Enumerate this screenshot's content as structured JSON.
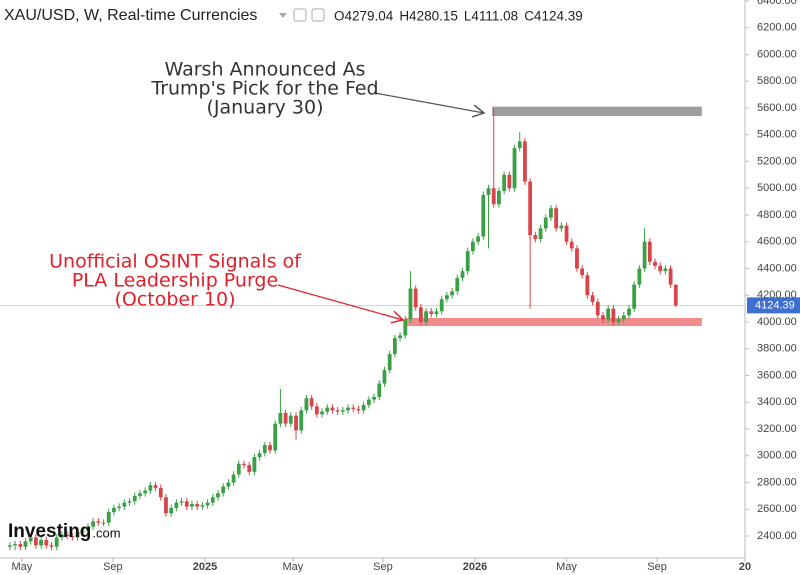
{
  "chart_data": {
    "type": "candlestick",
    "title": "XAU/USD, W, Real-time Currencies",
    "ohlc_labels": [
      "O4279.04",
      "H4280.15",
      "L4111.08",
      "C4124.39"
    ],
    "up_color": "#3a9f45",
    "down_color": "#d9434a",
    "xlim": [
      -1.9,
      141.3
    ],
    "xticks": [
      {
        "value": 2.3,
        "label": "May"
      },
      {
        "value": 19.8,
        "label": "Sep"
      },
      {
        "value": 37.5,
        "label": "2025"
      },
      {
        "value": 54.4,
        "label": "May"
      },
      {
        "value": 71.7,
        "label": "Sep"
      },
      {
        "value": 89.4,
        "label": "2026"
      },
      {
        "value": 107,
        "label": "May"
      },
      {
        "value": 124.4,
        "label": "Sep"
      },
      {
        "value": 141.3,
        "label": "20"
      }
    ],
    "ylim": [
      2221,
      6407
    ],
    "yticks": [
      {
        "value": 2400,
        "label": "2400.00"
      },
      {
        "value": 2600,
        "label": "2600.00"
      },
      {
        "value": 2800,
        "label": "2800.00"
      },
      {
        "value": 3000,
        "label": "3000.00"
      },
      {
        "value": 3200,
        "label": "3200.00"
      },
      {
        "value": 3400,
        "label": "3400.00"
      },
      {
        "value": 3600,
        "label": "3600.00"
      },
      {
        "value": 3800,
        "label": "3800.00"
      },
      {
        "value": 4000,
        "label": "4000.00"
      },
      {
        "value": 4200,
        "label": "4200.00"
      },
      {
        "value": 4400,
        "label": "4400.00"
      },
      {
        "value": 4600,
        "label": "4600.00"
      },
      {
        "value": 4800,
        "label": "4800.00"
      },
      {
        "value": 5000,
        "label": "5000.00"
      },
      {
        "value": 5200,
        "label": "5200.00"
      },
      {
        "value": 5400,
        "label": "5400.00"
      },
      {
        "value": 5600,
        "label": "5600.00"
      },
      {
        "value": 5800,
        "label": "5800.00"
      },
      {
        "value": 6000,
        "label": "6000.00"
      },
      {
        "value": 6200,
        "label": "6200.00"
      },
      {
        "value": 6400,
        "label": "6400.00"
      }
    ],
    "last_price": 4124.39,
    "last_price_color": "#3f6fd1",
    "open": [
      2320,
      2330,
      2340,
      2320,
      2360,
      2390,
      2330,
      2370,
      2330,
      2320,
      2390,
      2410,
      2400,
      2390,
      2430,
      2440,
      2470,
      2510,
      2500,
      2500,
      2580,
      2610,
      2620,
      2650,
      2660,
      2700,
      2720,
      2740,
      2780,
      2760,
      2690,
      2570,
      2610,
      2650,
      2660,
      2620,
      2640,
      2620,
      2630,
      2650,
      2690,
      2720,
      2770,
      2800,
      2860,
      2940,
      2930,
      2880,
      2990,
      3020,
      3080,
      3040,
      3240,
      3320,
      3240,
      3300,
      3190,
      3340,
      3430,
      3370,
      3310,
      3330,
      3360,
      3340,
      3330,
      3340,
      3360,
      3350,
      3340,
      3380,
      3420,
      3440,
      3540,
      3640,
      3760,
      3880,
      3900,
      4020,
      4250,
      4110,
      4000,
      4080,
      4060,
      4080,
      4170,
      4200,
      4230,
      4330,
      4380,
      4530,
      4600,
      4640,
      4950,
      5000,
      4880,
      4980,
      5100,
      5000,
      5300,
      5350,
      5050,
      4650,
      4620,
      4700,
      4780,
      4850,
      4700,
      4720,
      4600,
      4550,
      4400,
      4350,
      4200,
      4150,
      4050,
      4020,
      4100,
      4000,
      4020,
      4050,
      4100,
      4280,
      4400,
      4600,
      4450,
      4420,
      4380,
      4400,
      4279.04
    ],
    "high": [
      2355,
      2365,
      2365,
      2385,
      2415,
      2415,
      2395,
      2395,
      2355,
      2415,
      2435,
      2435,
      2425,
      2455,
      2465,
      2495,
      2535,
      2535,
      2525,
      2605,
      2635,
      2645,
      2675,
      2685,
      2725,
      2745,
      2765,
      2805,
      2805,
      2785,
      2715,
      2635,
      2675,
      2685,
      2685,
      2665,
      2665,
      2655,
      2675,
      2715,
      2745,
      2795,
      2825,
      2885,
      2965,
      2965,
      2955,
      3015,
      3045,
      3105,
      3105,
      3265,
      3500,
      3345,
      3325,
      3325,
      3365,
      3455,
      3455,
      3395,
      3355,
      3385,
      3385,
      3365,
      3365,
      3385,
      3385,
      3375,
      3405,
      3445,
      3465,
      3565,
      3665,
      3785,
      3905,
      3925,
      4045,
      4380,
      4275,
      4135,
      4105,
      4105,
      4105,
      4195,
      4225,
      4255,
      4355,
      4405,
      4555,
      4625,
      4665,
      4975,
      5025,
      5600,
      5005,
      5125,
      5125,
      5325,
      5420,
      5375,
      5075,
      4675,
      4725,
      4805,
      4875,
      4875,
      4745,
      4745,
      4625,
      4575,
      4425,
      4375,
      4225,
      4175,
      4075,
      4125,
      4125,
      4045,
      4075,
      4125,
      4305,
      4425,
      4700,
      4625,
      4475,
      4445,
      4425,
      4425,
      4280.15
    ],
    "low": [
      2295,
      2295,
      2295,
      2295,
      2335,
      2305,
      2305,
      2305,
      2295,
      2295,
      2365,
      2375,
      2365,
      2365,
      2405,
      2415,
      2445,
      2475,
      2475,
      2475,
      2555,
      2585,
      2595,
      2625,
      2635,
      2675,
      2695,
      2715,
      2735,
      2665,
      2545,
      2545,
      2585,
      2625,
      2595,
      2595,
      2595,
      2595,
      2605,
      2625,
      2665,
      2695,
      2745,
      2775,
      2835,
      2905,
      2855,
      2855,
      2965,
      2995,
      3015,
      3015,
      3215,
      3215,
      3215,
      3120,
      3165,
      3315,
      3345,
      3285,
      3285,
      3305,
      3315,
      3305,
      3305,
      3315,
      3325,
      3315,
      3315,
      3355,
      3395,
      3415,
      3515,
      3615,
      3735,
      3855,
      3875,
      3995,
      4085,
      3975,
      3975,
      4035,
      4035,
      4055,
      4145,
      4175,
      4205,
      4305,
      4355,
      4505,
      4575,
      4615,
      4550,
      4855,
      4855,
      4955,
      4975,
      4975,
      5275,
      5025,
      4100,
      4595,
      4595,
      4675,
      4755,
      4675,
      4675,
      4575,
      4525,
      4375,
      4325,
      4175,
      4125,
      4025,
      3995,
      3995,
      3975,
      3975,
      3995,
      4025,
      4075,
      4255,
      4375,
      4425,
      4395,
      4355,
      4355,
      4255,
      4111.08
    ],
    "close": [
      2330,
      2340,
      2320,
      2360,
      2390,
      2330,
      2370,
      2330,
      2320,
      2390,
      2410,
      2400,
      2390,
      2430,
      2440,
      2470,
      2510,
      2500,
      2500,
      2580,
      2610,
      2620,
      2650,
      2660,
      2700,
      2720,
      2740,
      2780,
      2760,
      2690,
      2570,
      2610,
      2650,
      2660,
      2620,
      2640,
      2620,
      2630,
      2650,
      2690,
      2720,
      2770,
      2800,
      2860,
      2940,
      2930,
      2880,
      2990,
      3020,
      3080,
      3040,
      3240,
      3320,
      3240,
      3300,
      3190,
      3340,
      3430,
      3370,
      3310,
      3330,
      3360,
      3340,
      3330,
      3340,
      3360,
      3350,
      3340,
      3380,
      3420,
      3440,
      3540,
      3640,
      3760,
      3880,
      3900,
      4020,
      4250,
      4110,
      4000,
      4080,
      4060,
      4080,
      4170,
      4200,
      4230,
      4330,
      4380,
      4530,
      4600,
      4640,
      4950,
      5000,
      4880,
      4980,
      5100,
      5000,
      5300,
      5350,
      5050,
      4650,
      4620,
      4700,
      4780,
      4850,
      4700,
      4720,
      4600,
      4550,
      4400,
      4350,
      4200,
      4150,
      4050,
      4020,
      4100,
      4000,
      4020,
      4050,
      4100,
      4280,
      4400,
      4600,
      4450,
      4420,
      4380,
      4400,
      4279.04,
      4124.39
    ],
    "zones": [
      {
        "from": 5540,
        "to": 5610,
        "start": 92.7,
        "end": 133,
        "color": "#9e9e9e"
      },
      {
        "from": 3970,
        "to": 4030,
        "start": 76,
        "end": 133,
        "color": "#f28b8b"
      }
    ],
    "annotations": [
      {
        "lines": [
          "Warsh Announced As",
          "Trump's Pick for the Fed",
          "(January 30)"
        ],
        "color": "#333333"
      },
      {
        "lines": [
          "Unofficial OSINT Signals of",
          "PLA Leadership Purge",
          "(October 10)"
        ],
        "color": "#e0202a"
      }
    ],
    "watermark": "Investing",
    "watermark_suffix": ".com"
  }
}
